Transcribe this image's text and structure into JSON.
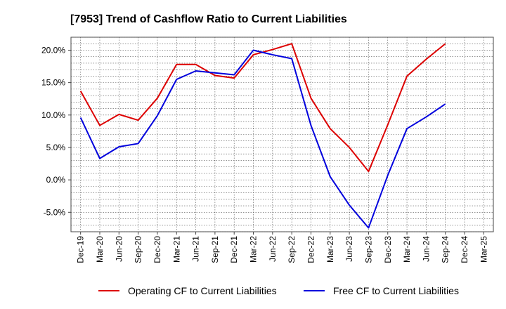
{
  "chart_data": {
    "type": "line",
    "title": "[7953]  Trend of Cashflow Ratio to Current Liabilities",
    "xlabel": "",
    "ylabel": "",
    "ylim": [
      -8,
      22
    ],
    "grid": true,
    "legend_position": "bottom",
    "y_ticks": [
      20,
      15,
      10,
      5,
      0,
      -5
    ],
    "y_tick_labels": [
      "20.0%",
      "15.0%",
      "10.0%",
      "5.0%",
      "0.0%",
      "-5.0%"
    ],
    "categories": [
      "Dec-19",
      "Mar-20",
      "Jun-20",
      "Sep-20",
      "Dec-20",
      "Mar-21",
      "Jun-21",
      "Sep-21",
      "Dec-21",
      "Mar-22",
      "Jun-22",
      "Sep-22",
      "Dec-22",
      "Mar-23",
      "Jun-23",
      "Sep-23",
      "Dec-23",
      "Mar-24",
      "Jun-24",
      "Sep-24",
      "Dec-24",
      "Mar-25"
    ],
    "series": [
      {
        "name": "Operating CF to Current Liabilities",
        "color": "#dd0000",
        "values": [
          13.7,
          8.4,
          10.1,
          9.2,
          12.6,
          17.8,
          17.8,
          16.1,
          15.7,
          19.3,
          20.1,
          21.0,
          12.6,
          7.9,
          5.0,
          1.3,
          8.5,
          16.0,
          18.6,
          21.0,
          null,
          null
        ]
      },
      {
        "name": "Free CF to Current Liabilities",
        "color": "#0000dd",
        "values": [
          9.6,
          3.3,
          5.1,
          5.6,
          9.9,
          15.5,
          16.8,
          16.5,
          16.2,
          20.0,
          19.3,
          18.7,
          8.4,
          0.5,
          -3.9,
          -7.4,
          0.7,
          7.9,
          9.7,
          11.7,
          null,
          null
        ]
      }
    ]
  }
}
